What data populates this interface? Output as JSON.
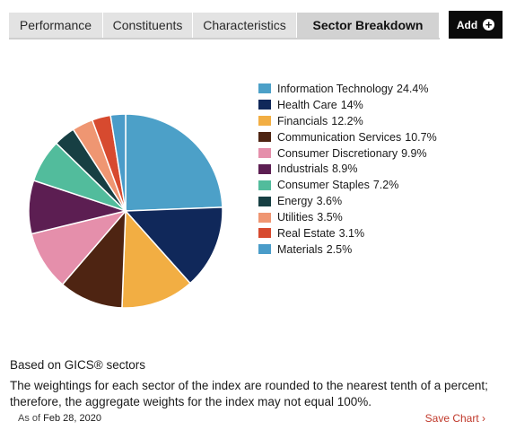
{
  "tabs": [
    {
      "label": "Performance",
      "active": false
    },
    {
      "label": "Constituents",
      "active": false
    },
    {
      "label": "Characteristics",
      "active": false
    },
    {
      "label": "Sector Breakdown",
      "active": true
    }
  ],
  "add_button": {
    "label": "Add",
    "icon": "plus-circle-icon"
  },
  "chart_data": {
    "type": "pie",
    "categories": [
      "Information Technology",
      "Health Care",
      "Financials",
      "Communication Services",
      "Consumer Discretionary",
      "Industrials",
      "Consumer Staples",
      "Energy",
      "Utilities",
      "Real Estate",
      "Materials"
    ],
    "values": [
      24.4,
      14,
      12.2,
      10.7,
      9.9,
      8.9,
      7.2,
      3.6,
      3.5,
      3.1,
      2.5
    ],
    "value_labels": [
      "24.4%",
      "14%",
      "12.2%",
      "10.7%",
      "9.9%",
      "8.9%",
      "7.2%",
      "3.6%",
      "3.5%",
      "3.1%",
      "2.5%"
    ],
    "colors": [
      "#4ca0c8",
      "#10285a",
      "#f2ae43",
      "#4e2412",
      "#e58fab",
      "#5c1e52",
      "#52bc9c",
      "#173f43",
      "#ef9672",
      "#d74a2f",
      "#4a9cc9"
    ],
    "legend_position": "right"
  },
  "footer": {
    "basis": "Based on GICS® sectors",
    "note": "The weightings for each sector of the index are rounded to the nearest tenth of a percent; therefore, the aggregate weights for the index may not equal 100%.",
    "as_of_label": "As of",
    "as_of_date": "Feb 28, 2020",
    "save_chart": "Save Chart ›"
  }
}
